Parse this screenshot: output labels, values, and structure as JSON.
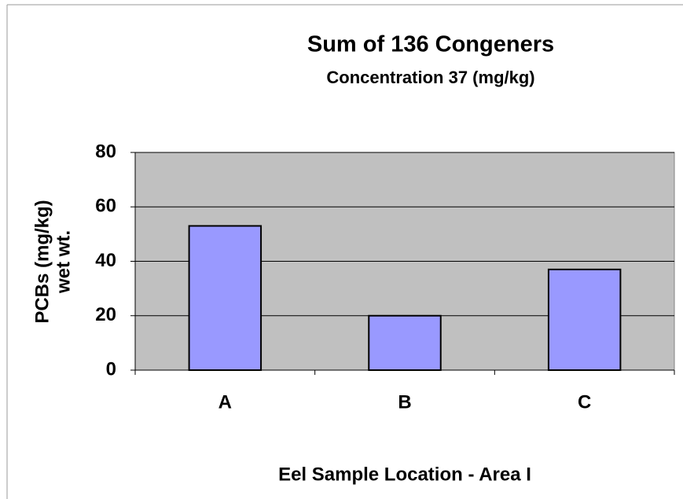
{
  "chart_data": {
    "type": "bar",
    "title": "Sum of 136 Congeners",
    "subtitle": "Concentration 37 (mg/kg)",
    "x_label": "Eel Sample Location - Area I",
    "y_label": [
      "PCBs (mg/kg)",
      "wet wt."
    ],
    "categories": [
      "A",
      "B",
      "C"
    ],
    "values": [
      53,
      20,
      37
    ],
    "color": "#9999ff",
    "ylim": [
      0,
      80
    ],
    "yticks": [
      0,
      20,
      40,
      60,
      80
    ],
    "grid": true
  }
}
